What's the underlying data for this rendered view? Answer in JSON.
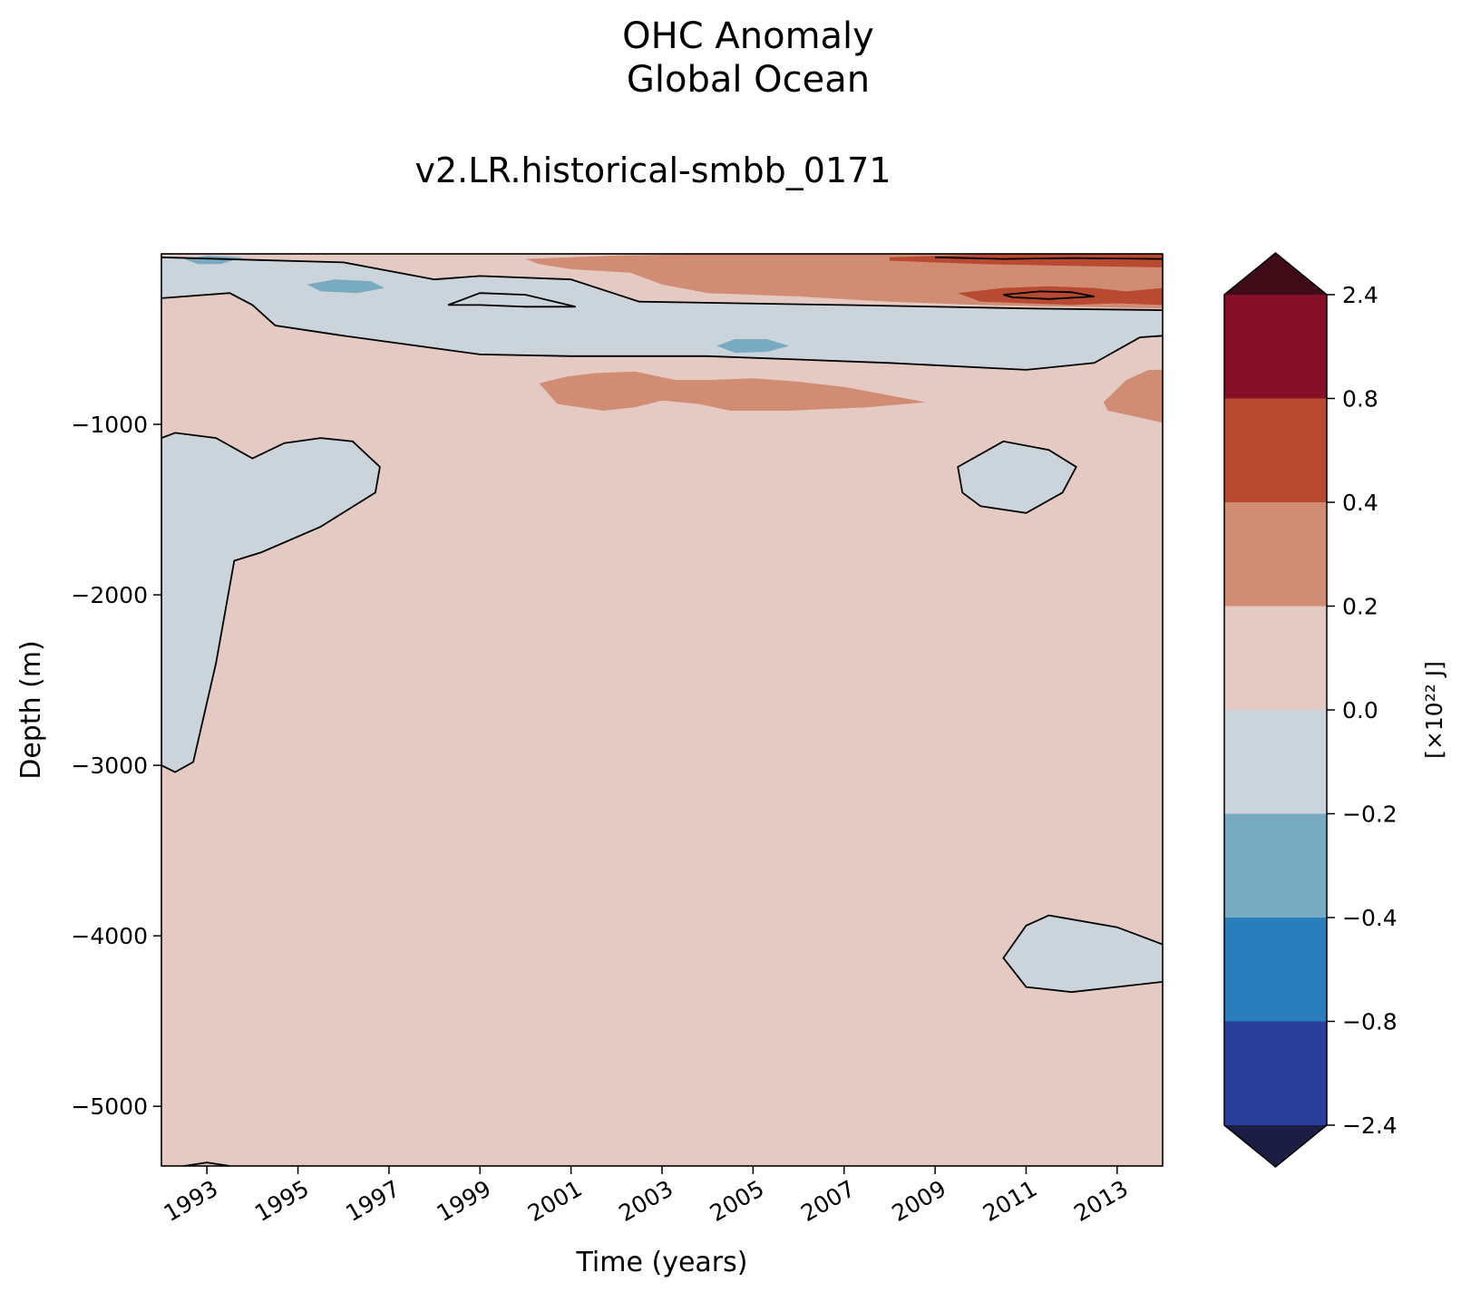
{
  "chart_data": {
    "type": "heatmap",
    "title": "OHC Anomaly",
    "title_line2": "Global Ocean",
    "subtitle": "v2.LR.historical-smbb_0171",
    "xlabel": "Time (years)",
    "ylabel": "Depth (m)",
    "xlim": [
      1992,
      2014
    ],
    "ylim": [
      -5350,
      0
    ],
    "x_ticks": [
      1993,
      1995,
      1997,
      1999,
      2001,
      2003,
      2005,
      2007,
      2009,
      2011,
      2013
    ],
    "y_ticks": [
      -1000,
      -2000,
      -3000,
      -4000,
      -5000
    ],
    "y_tick_labels": [
      "−1000",
      "−2000",
      "−3000",
      "−4000",
      "−5000"
    ],
    "colorbar": {
      "label": "[×10²² J]",
      "levels": [
        -2.4,
        -0.8,
        -0.4,
        -0.2,
        0.0,
        0.2,
        0.4,
        0.8,
        2.4
      ],
      "level_labels": [
        "−2.4",
        "−0.8",
        "−0.4",
        "−0.2",
        "0.0",
        "0.2",
        "0.4",
        "0.8",
        "2.4"
      ],
      "colors": [
        "#2a3f9c",
        "#2a7ebb",
        "#78abc1",
        "#cbd4da",
        "#e4cac3",
        "#d08d74",
        "#b84a31",
        "#860f28"
      ],
      "extend_low_color": "#1b1d45",
      "extend_high_color": "#3f0b16",
      "extend": "both"
    },
    "background_level_color": "#e4cac3",
    "regions": [
      {
        "name": "near-zero-negative",
        "value_range": [
          -0.2,
          0.0
        ],
        "points": [
          [
            1992,
            -260
          ],
          [
            1993.5,
            -230
          ],
          [
            1994,
            -300
          ],
          [
            1994.5,
            -420
          ],
          [
            1996,
            -480
          ],
          [
            1999,
            -590
          ],
          [
            2001,
            -600
          ],
          [
            2004,
            -600
          ],
          [
            2008,
            -640
          ],
          [
            2011,
            -680
          ],
          [
            2012.5,
            -640
          ],
          [
            2013.5,
            -490
          ],
          [
            2014,
            -480
          ],
          [
            2014,
            -330
          ],
          [
            2011,
            -320
          ],
          [
            2007,
            -300
          ],
          [
            2002.5,
            -280
          ],
          [
            2001,
            -150
          ],
          [
            1999,
            -130
          ],
          [
            1998,
            -150
          ],
          [
            1996,
            -50
          ],
          [
            1992,
            -20
          ]
        ]
      },
      {
        "name": "near-zero-negative",
        "value_range": [
          -0.2,
          0.0
        ],
        "points": [
          [
            1992,
            -3000
          ],
          [
            1992.3,
            -3040
          ],
          [
            1992.7,
            -2980
          ],
          [
            1993.2,
            -2400
          ],
          [
            1993.6,
            -1800
          ],
          [
            1994.2,
            -1750
          ],
          [
            1995.5,
            -1600
          ],
          [
            1996.7,
            -1400
          ],
          [
            1996.8,
            -1250
          ],
          [
            1996.2,
            -1100
          ],
          [
            1995.5,
            -1080
          ],
          [
            1994.7,
            -1110
          ],
          [
            1994,
            -1200
          ],
          [
            1993.2,
            -1080
          ],
          [
            1992.3,
            -1050
          ],
          [
            1992,
            -1080
          ]
        ]
      },
      {
        "name": "near-zero-negative",
        "value_range": [
          -0.2,
          0.0
        ],
        "points": [
          [
            2009.5,
            -1250
          ],
          [
            2010.5,
            -1100
          ],
          [
            2011.5,
            -1150
          ],
          [
            2012.1,
            -1250
          ],
          [
            2011.8,
            -1400
          ],
          [
            2011,
            -1520
          ],
          [
            2010,
            -1480
          ],
          [
            2009.6,
            -1400
          ]
        ]
      },
      {
        "name": "near-zero-negative",
        "value_range": [
          -0.2,
          0.0
        ],
        "points": [
          [
            2010.5,
            -4130
          ],
          [
            2011,
            -3940
          ],
          [
            2011.5,
            -3880
          ],
          [
            2013,
            -3950
          ],
          [
            2014,
            -4050
          ],
          [
            2014,
            -4270
          ],
          [
            2012,
            -4330
          ],
          [
            2011,
            -4300
          ]
        ]
      },
      {
        "name": "moderate-negative",
        "value_range": [
          -0.4,
          -0.2
        ],
        "points": [
          [
            2004.2,
            -540
          ],
          [
            2004.6,
            -500
          ],
          [
            2005.3,
            -500
          ],
          [
            2005.8,
            -540
          ],
          [
            2005.3,
            -575
          ],
          [
            2004.6,
            -580
          ]
        ]
      },
      {
        "name": "moderate-negative",
        "value_range": [
          -0.4,
          -0.2
        ],
        "points": [
          [
            1995.2,
            -180
          ],
          [
            1995.8,
            -150
          ],
          [
            1996.6,
            -160
          ],
          [
            1996.9,
            -200
          ],
          [
            1996.3,
            -230
          ],
          [
            1995.5,
            -220
          ]
        ]
      },
      {
        "name": "moderate-negative",
        "value_range": [
          -0.4,
          -0.2
        ],
        "points": [
          [
            1992.5,
            -30
          ],
          [
            1993,
            -10
          ],
          [
            1993.8,
            -20
          ],
          [
            1993.3,
            -60
          ],
          [
            1992.8,
            -60
          ]
        ]
      },
      {
        "name": "warm-intermediate",
        "value_range": [
          0.2,
          0.4
        ],
        "points": [
          [
            2000.3,
            -760
          ],
          [
            2000.9,
            -720
          ],
          [
            2001.5,
            -700
          ],
          [
            2002.4,
            -690
          ],
          [
            2003.3,
            -740
          ],
          [
            2004,
            -740
          ],
          [
            2005,
            -730
          ],
          [
            2006,
            -750
          ],
          [
            2007,
            -780
          ],
          [
            2008.8,
            -870
          ],
          [
            2007.5,
            -900
          ],
          [
            2005.8,
            -920
          ],
          [
            2004.5,
            -920
          ],
          [
            2003.8,
            -880
          ],
          [
            2003,
            -860
          ],
          [
            2002.4,
            -900
          ],
          [
            2001.7,
            -920
          ],
          [
            2000.7,
            -880
          ]
        ]
      },
      {
        "name": "warm-intermediate",
        "value_range": [
          0.2,
          0.4
        ],
        "points": [
          [
            2012.7,
            -870
          ],
          [
            2013.2,
            -740
          ],
          [
            2013.7,
            -680
          ],
          [
            2014,
            -680
          ],
          [
            2014,
            -990
          ],
          [
            2013.5,
            -960
          ],
          [
            2012.8,
            -920
          ]
        ]
      },
      {
        "name": "warm-intermediate",
        "value_range": [
          0.2,
          0.4
        ],
        "points": [
          [
            2000,
            -30
          ],
          [
            2002,
            -10
          ],
          [
            2004,
            0
          ],
          [
            2006,
            0
          ],
          [
            2008,
            0
          ],
          [
            2010,
            0
          ],
          [
            2012,
            0
          ],
          [
            2014,
            0
          ],
          [
            2014,
            -320
          ],
          [
            2012,
            -310
          ],
          [
            2010,
            -300
          ],
          [
            2008,
            -280
          ],
          [
            2006,
            -250
          ],
          [
            2004,
            -230
          ],
          [
            2003,
            -180
          ],
          [
            2002.3,
            -110
          ],
          [
            2001,
            -90
          ],
          [
            2000.3,
            -60
          ]
        ]
      },
      {
        "name": "warm-strong",
        "value_range": [
          0.4,
          0.8
        ],
        "points": [
          [
            2008,
            -20
          ],
          [
            2010,
            -5
          ],
          [
            2012,
            0
          ],
          [
            2014,
            0
          ],
          [
            2014,
            -80
          ],
          [
            2012,
            -70
          ],
          [
            2010,
            -60
          ],
          [
            2008,
            -40
          ]
        ]
      },
      {
        "name": "warm-strong",
        "value_range": [
          0.4,
          0.8
        ],
        "points": [
          [
            2009.5,
            -230
          ],
          [
            2010.5,
            -200
          ],
          [
            2011.5,
            -190
          ],
          [
            2012.5,
            -200
          ],
          [
            2013.2,
            -220
          ],
          [
            2014,
            -200
          ],
          [
            2014,
            -300
          ],
          [
            2013,
            -290
          ],
          [
            2012,
            -300
          ],
          [
            2011,
            -290
          ],
          [
            2010,
            -280
          ]
        ]
      }
    ],
    "contours": [
      {
        "level": 0.0,
        "points": [
          [
            1992,
            -260
          ],
          [
            1993.5,
            -230
          ],
          [
            1994,
            -300
          ],
          [
            1994.5,
            -420
          ],
          [
            1996,
            -480
          ],
          [
            1999,
            -590
          ],
          [
            2001,
            -600
          ],
          [
            2004,
            -600
          ],
          [
            2008,
            -640
          ],
          [
            2011,
            -680
          ],
          [
            2012.5,
            -640
          ],
          [
            2013.5,
            -490
          ],
          [
            2014,
            -480
          ]
        ]
      },
      {
        "level": 0.0,
        "points": [
          [
            1992,
            -20
          ],
          [
            1996,
            -50
          ],
          [
            1998,
            -150
          ],
          [
            1999,
            -130
          ],
          [
            2001,
            -150
          ],
          [
            2002.5,
            -280
          ],
          [
            2007,
            -300
          ],
          [
            2011,
            -320
          ],
          [
            2014,
            -330
          ]
        ]
      },
      {
        "level": 0.0,
        "closed": true,
        "points": [
          [
            1998.3,
            -300
          ],
          [
            1999,
            -230
          ],
          [
            2000,
            -240
          ],
          [
            2001.1,
            -310
          ],
          [
            2000,
            -310
          ],
          [
            1999,
            -300
          ]
        ]
      },
      {
        "level": 0.0,
        "closed": true,
        "points": [
          [
            1992,
            -3000
          ],
          [
            1992.3,
            -3040
          ],
          [
            1992.7,
            -2980
          ],
          [
            1993.2,
            -2400
          ],
          [
            1993.6,
            -1800
          ],
          [
            1994.2,
            -1750
          ],
          [
            1995.5,
            -1600
          ],
          [
            1996.7,
            -1400
          ],
          [
            1996.8,
            -1250
          ],
          [
            1996.2,
            -1100
          ],
          [
            1995.5,
            -1080
          ],
          [
            1994.7,
            -1110
          ],
          [
            1994,
            -1200
          ],
          [
            1993.2,
            -1080
          ],
          [
            1992.3,
            -1050
          ],
          [
            1992,
            -1080
          ]
        ]
      },
      {
        "level": 0.0,
        "closed": true,
        "points": [
          [
            2009.5,
            -1250
          ],
          [
            2010.5,
            -1100
          ],
          [
            2011.5,
            -1150
          ],
          [
            2012.1,
            -1250
          ],
          [
            2011.8,
            -1400
          ],
          [
            2011,
            -1520
          ],
          [
            2010,
            -1480
          ],
          [
            2009.6,
            -1400
          ]
        ]
      },
      {
        "level": 0.0,
        "points": [
          [
            2014,
            -4050
          ],
          [
            2013,
            -3950
          ],
          [
            2011.5,
            -3880
          ],
          [
            2011,
            -3940
          ],
          [
            2010.5,
            -4130
          ],
          [
            2011,
            -4300
          ],
          [
            2012,
            -4330
          ],
          [
            2014,
            -4270
          ]
        ]
      },
      {
        "level": 0.0,
        "points": [
          [
            1992.5,
            -5350
          ],
          [
            1993,
            -5330
          ],
          [
            1993.5,
            -5350
          ]
        ]
      },
      {
        "level": 0.8,
        "closed": true,
        "points": [
          [
            2010.5,
            -240
          ],
          [
            2011.3,
            -220
          ],
          [
            2012,
            -225
          ],
          [
            2012.5,
            -250
          ],
          [
            2011.5,
            -265
          ],
          [
            2010.7,
            -255
          ]
        ]
      },
      {
        "level": 0.8,
        "points": [
          [
            2009,
            -20
          ],
          [
            2010.5,
            -30
          ],
          [
            2012,
            -25
          ],
          [
            2014,
            -30
          ]
        ]
      }
    ]
  }
}
